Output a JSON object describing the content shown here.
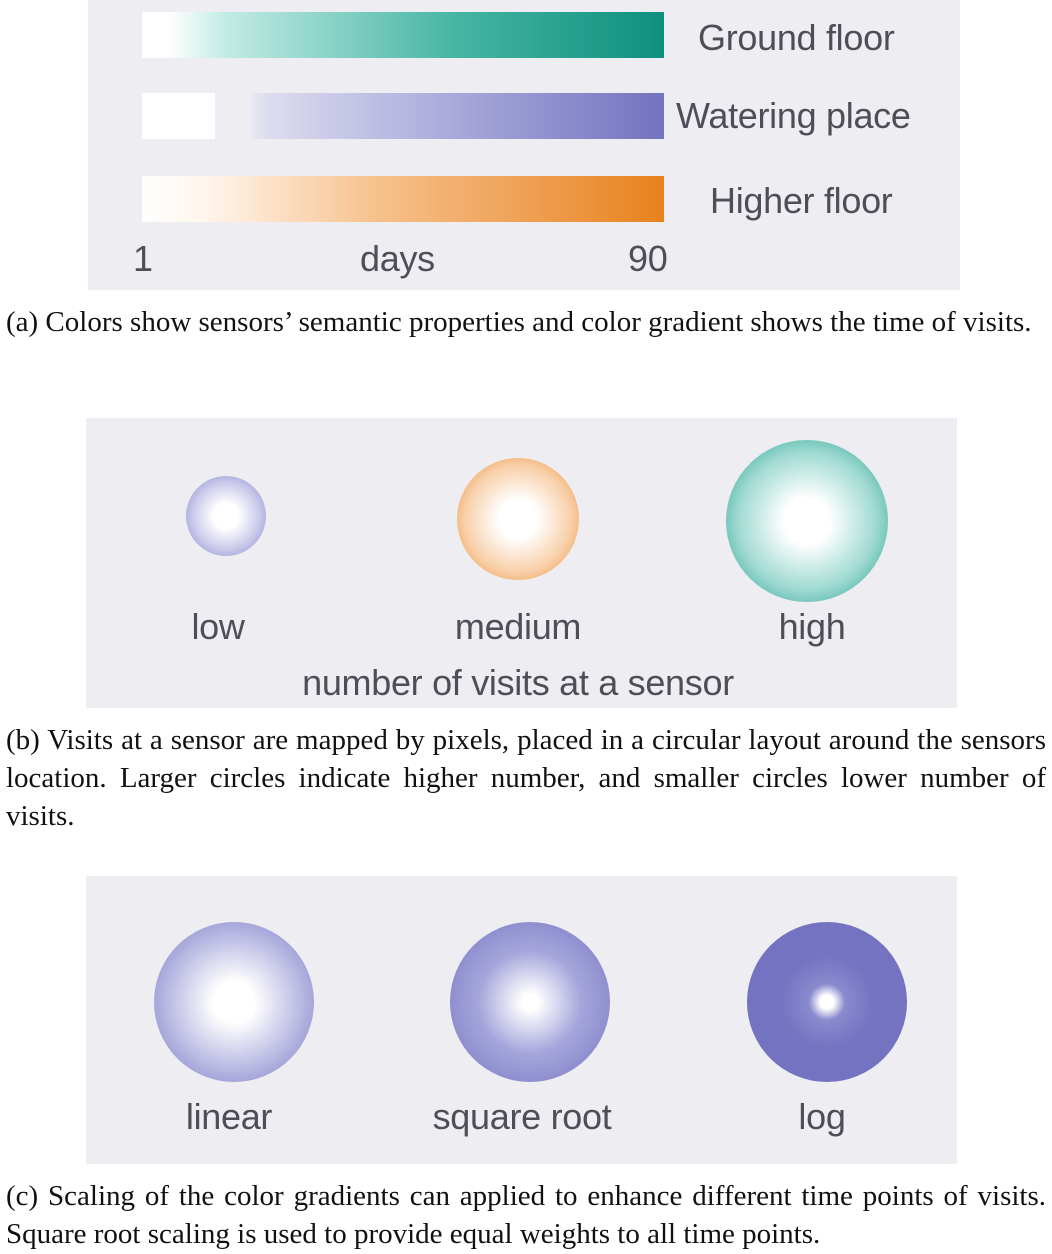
{
  "panel_a": {
    "rows": [
      {
        "label": "Ground floor",
        "color": "#0e8f7e"
      },
      {
        "label": "Watering place",
        "color": "#6f6fc0"
      },
      {
        "label": "Higher floor",
        "color": "#e8821e"
      }
    ],
    "axis": {
      "min_label": "1",
      "unit_label": "days",
      "max_label": "90"
    },
    "caption": "(a) Colors show sensors’ semantic properties and color gradient shows the time of visits."
  },
  "panel_b": {
    "circles": [
      {
        "label": "low",
        "color": "#7b7bc6"
      },
      {
        "label": "medium",
        "color": "#e8821e"
      },
      {
        "label": "high",
        "color": "#11958a"
      }
    ],
    "axis_label": "number of visits at a sensor",
    "caption": "(b) Visits at a sensor are mapped by pixels, placed in a circular layout around the sensors location. Larger circles indicate higher number, and smaller circles lower number of visits."
  },
  "panel_c": {
    "circles": [
      {
        "label": "linear",
        "color": "#7474c2"
      },
      {
        "label": "square root",
        "color": "#7474c2"
      },
      {
        "label": "log",
        "color": "#7474c2"
      }
    ],
    "caption": "(c) Scaling of the color gradients can applied to enhance different time points of visits. Square root scaling is used to provide equal weights to all time points."
  }
}
